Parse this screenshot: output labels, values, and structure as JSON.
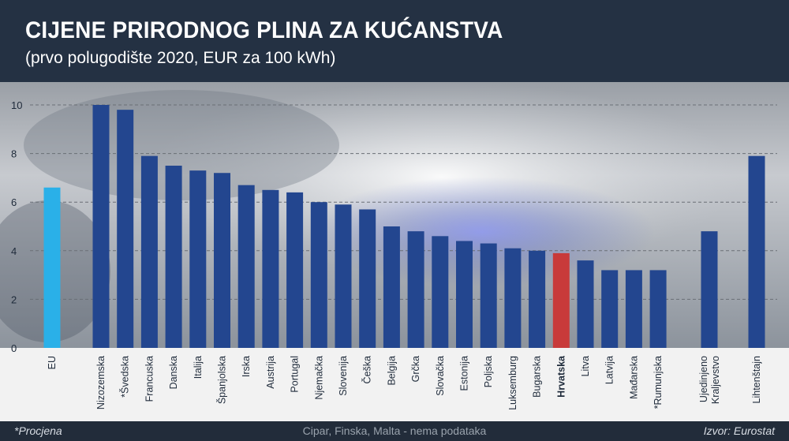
{
  "title": "CIJENE PRIRODNOG PLINA ZA KUĆANSTVA",
  "subtitle": "(prvo polugodište 2020, EUR za 100 kWh)",
  "footer": {
    "note": "*Procjena",
    "missing": "Cipar, Finska, Malta - nema podataka",
    "source": "Izvor: Eurostat"
  },
  "colors": {
    "bar": "#23468f",
    "eu": "#2ab0e8",
    "highlight": "#c83a3a"
  },
  "chart_data": {
    "type": "bar",
    "ylim": [
      0,
      10
    ],
    "yticks": [
      0,
      2,
      4,
      6,
      8,
      10
    ],
    "grid": true,
    "categories": [
      "EU",
      "Nizozemska",
      "*Švedska",
      "Francuska",
      "Danska",
      "Italija",
      "Španjolska",
      "Irska",
      "Austrija",
      "Portugal",
      "Njemačka",
      "Slovenija",
      "Češka",
      "Belgija",
      "Grčka",
      "Slovačka",
      "Estonija",
      "Poljska",
      "Luksemburg",
      "Bugarska",
      "Hrvatska",
      "Litva",
      "Latvija",
      "Mađarska",
      "*Rumunjska",
      "Ujedinjeno Kraljevstvo",
      "Lihtenštajn"
    ],
    "values": [
      6.6,
      10.0,
      9.8,
      7.9,
      7.5,
      7.3,
      7.2,
      6.7,
      6.5,
      6.4,
      6.0,
      5.9,
      5.7,
      5.0,
      4.8,
      4.6,
      4.4,
      4.3,
      4.1,
      4.0,
      3.9,
      3.6,
      3.2,
      3.2,
      3.2,
      4.8,
      7.9
    ],
    "highlight": "Hrvatska",
    "average": "EU"
  }
}
